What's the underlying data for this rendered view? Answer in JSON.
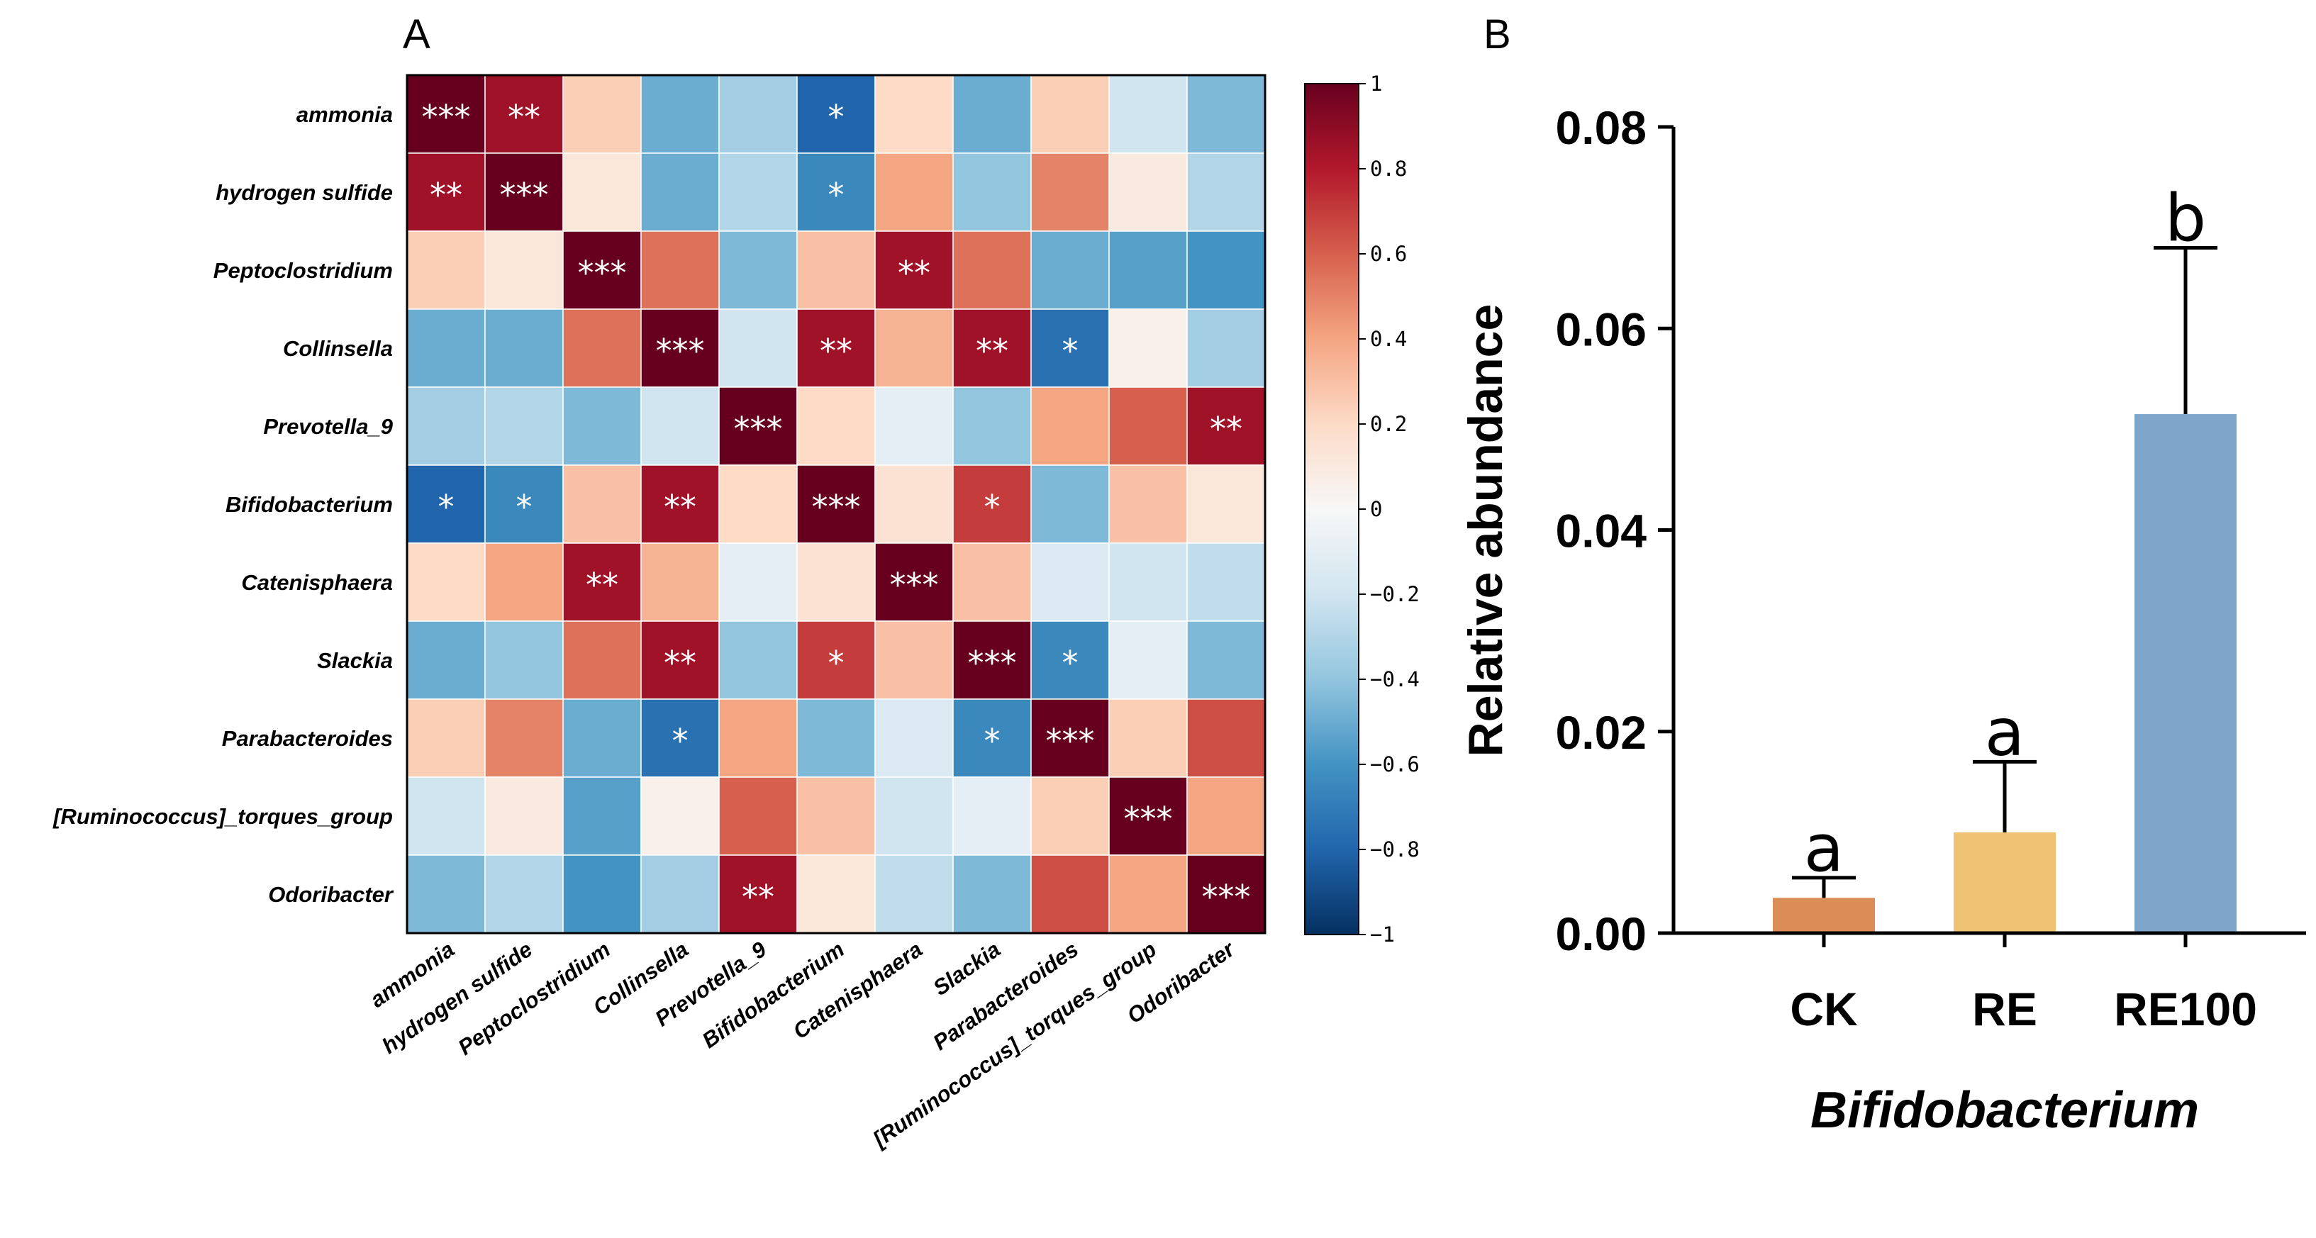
{
  "panels": {
    "a": "A",
    "b": "B"
  },
  "chart_data": [
    {
      "type": "heatmap",
      "title": "",
      "rows": [
        "ammonia",
        "hydrogen sulfide",
        "Peptoclostridium",
        "Collinsella",
        "Prevotella_9",
        "Bifidobacterium",
        "Catenisphaera",
        "Slackia",
        "Parabacteroides",
        "[Ruminococcus]_torques_group",
        "Odoribacter"
      ],
      "columns": [
        "ammonia",
        "hydrogen sulfide",
        "Peptoclostridium",
        "Collinsella",
        "Prevotella_9",
        "Bifidobacterium",
        "Catenisphaera",
        "Slackia",
        "Parabacteroides",
        "[Ruminococcus]_torques_group",
        "Odoribacter"
      ],
      "values": [
        [
          1.0,
          0.85,
          0.25,
          -0.5,
          -0.35,
          -0.8,
          0.2,
          -0.5,
          0.25,
          -0.2,
          -0.45
        ],
        [
          0.85,
          1.0,
          0.12,
          -0.5,
          -0.3,
          -0.65,
          0.4,
          -0.4,
          0.5,
          0.1,
          -0.3
        ],
        [
          0.25,
          0.12,
          1.0,
          0.55,
          -0.45,
          0.3,
          0.85,
          0.55,
          -0.5,
          -0.55,
          -0.6
        ],
        [
          -0.5,
          -0.5,
          0.55,
          1.0,
          -0.2,
          0.85,
          0.35,
          0.85,
          -0.75,
          0.05,
          -0.35
        ],
        [
          -0.35,
          -0.3,
          -0.45,
          -0.2,
          1.0,
          0.2,
          -0.1,
          -0.4,
          0.4,
          0.6,
          0.85
        ],
        [
          -0.8,
          -0.65,
          0.3,
          0.85,
          0.2,
          1.0,
          0.15,
          0.7,
          -0.45,
          0.3,
          0.12
        ],
        [
          0.2,
          0.4,
          0.85,
          0.35,
          -0.1,
          0.15,
          1.0,
          0.3,
          -0.15,
          -0.2,
          -0.25
        ],
        [
          -0.5,
          -0.4,
          0.55,
          0.85,
          -0.4,
          0.7,
          0.3,
          1.0,
          -0.65,
          -0.1,
          -0.45
        ],
        [
          0.25,
          0.5,
          -0.5,
          -0.75,
          0.4,
          -0.45,
          -0.15,
          -0.65,
          1.0,
          0.25,
          0.65
        ],
        [
          -0.2,
          0.1,
          -0.55,
          0.05,
          0.6,
          0.3,
          -0.2,
          -0.1,
          0.25,
          1.0,
          0.4
        ],
        [
          -0.45,
          -0.3,
          -0.6,
          -0.35,
          0.85,
          0.12,
          -0.25,
          -0.45,
          0.65,
          0.4,
          1.0
        ]
      ],
      "significance": [
        [
          "***",
          "**",
          "",
          "",
          "",
          "*",
          "",
          "",
          "",
          "",
          ""
        ],
        [
          "**",
          "***",
          "",
          "",
          "",
          "*",
          "",
          "",
          "",
          "",
          ""
        ],
        [
          "",
          "",
          "***",
          "",
          "",
          "",
          "**",
          "",
          "",
          "",
          ""
        ],
        [
          "",
          "",
          "",
          "***",
          "",
          "**",
          "",
          "**",
          "*",
          "",
          ""
        ],
        [
          "",
          "",
          "",
          "",
          "***",
          "",
          "",
          "",
          "",
          "",
          "**"
        ],
        [
          "*",
          "*",
          "",
          "**",
          "",
          "***",
          "",
          "*",
          "",
          "",
          ""
        ],
        [
          "",
          "",
          "**",
          "",
          "",
          "",
          "***",
          "",
          "",
          "",
          ""
        ],
        [
          "",
          "",
          "",
          "**",
          "",
          "*",
          "",
          "***",
          "*",
          "",
          ""
        ],
        [
          "",
          "",
          "",
          "*",
          "",
          "",
          "",
          "*",
          "***",
          "",
          ""
        ],
        [
          "",
          "",
          "",
          "",
          "",
          "",
          "",
          "",
          "",
          "***",
          ""
        ],
        [
          "",
          "",
          "",
          "",
          "**",
          "",
          "",
          "",
          "",
          "",
          "***"
        ]
      ],
      "colorbar": {
        "range": [
          -1,
          1
        ],
        "ticks": [
          "1",
          "0.8",
          "0.6",
          "0.4",
          "0.2",
          "0",
          "−0.2",
          "−0.4",
          "−0.6",
          "−0.8",
          "−1"
        ],
        "colors": [
          "#053061",
          "#2166ac",
          "#4393c3",
          "#92c5de",
          "#d1e5f0",
          "#f7f7f7",
          "#fddbc7",
          "#f4a582",
          "#d6604d",
          "#b2182b",
          "#67001f"
        ]
      }
    },
    {
      "type": "bar",
      "title": "",
      "categories": [
        "CK",
        "RE",
        "RE100"
      ],
      "values": [
        0.0035,
        0.01,
        0.0515
      ],
      "errors": [
        0.002,
        0.007,
        0.0165
      ],
      "letters": [
        "a",
        "a",
        "b"
      ],
      "bar_colors": [
        "#dc8d57",
        "#f0c273",
        "#7ea6cb"
      ],
      "xlabel": "Bifidobacterium",
      "ylabel": "Relative abundance",
      "ylim": [
        0,
        0.08
      ],
      "yticks": [
        0,
        0.02,
        0.04,
        0.06,
        0.08
      ],
      "ytick_labels": [
        "0.00",
        "0.02",
        "0.04",
        "0.06",
        "0.08"
      ]
    }
  ]
}
